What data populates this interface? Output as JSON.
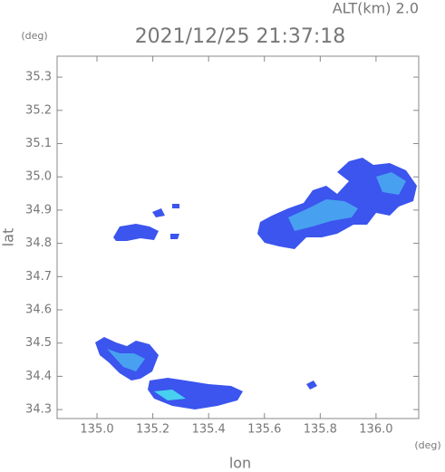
{
  "chart_data": {
    "type": "map",
    "title": "2021/12/25 21:37:18",
    "subtitle": "ALT(km) 2.0",
    "x_label": "lon",
    "y_label": "lat",
    "x_unit": "(deg)",
    "y_unit": "(deg)",
    "xlim": [
      134.857,
      136.153
    ],
    "ylim": [
      34.273,
      35.363
    ],
    "xticks": [
      {
        "value": 135,
        "label": "135.0"
      },
      135.2,
      135.4,
      135.6,
      135.8,
      {
        "value": 136,
        "label": "136.0"
      }
    ],
    "yticks": [
      34.3,
      34.4,
      34.5,
      34.6,
      34.7,
      34.8,
      34.9,
      {
        "value": 35,
        "label": "35.0"
      },
      35.1,
      35.2,
      35.3
    ]
  }
}
